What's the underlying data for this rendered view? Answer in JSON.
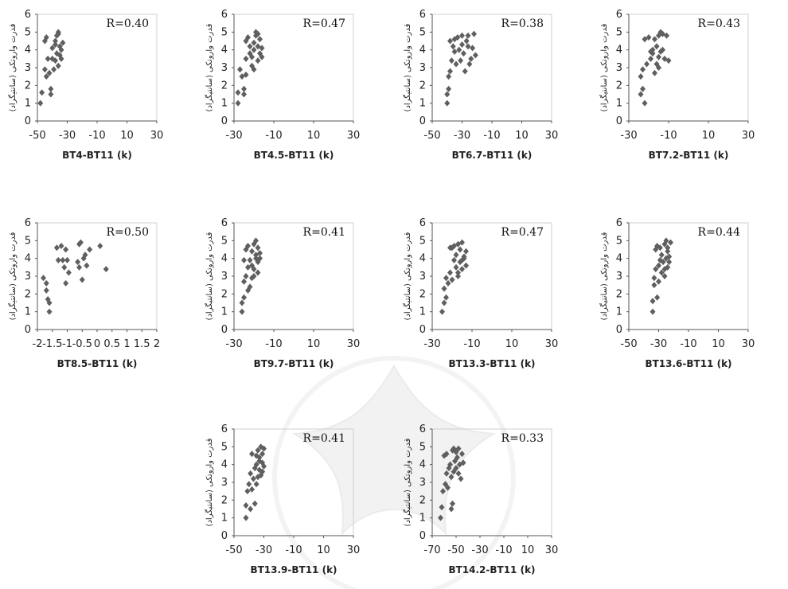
{
  "chart_data": [
    {
      "type": "scatter",
      "title": "",
      "xlabel": "BT4-BT11 (k)",
      "ylabel": "قدرت واروتکی (سانتیگراد)",
      "annotation": "R=0.40",
      "xlim": [
        -50,
        30
      ],
      "ylim": [
        0,
        6
      ],
      "xticks": [
        "-50",
        "-30",
        "-10",
        "10",
        "30"
      ],
      "yticks": [
        "0",
        "1",
        "2",
        "3",
        "4",
        "5",
        "6"
      ],
      "grid": false,
      "points": [
        [
          -48,
          1.0
        ],
        [
          -47,
          1.6
        ],
        [
          -45,
          2.9
        ],
        [
          -44,
          2.5
        ],
        [
          -43,
          3.5
        ],
        [
          -45,
          4.5
        ],
        [
          -44,
          4.7
        ],
        [
          -42,
          2.7
        ],
        [
          -40,
          3.5
        ],
        [
          -40,
          4.1
        ],
        [
          -41,
          1.5
        ],
        [
          -41,
          1.8
        ],
        [
          -39,
          2.9
        ],
        [
          -38,
          3.4
        ],
        [
          -37,
          3.8
        ],
        [
          -36,
          3.1
        ],
        [
          -38,
          4.5
        ],
        [
          -37,
          4.8
        ],
        [
          -36,
          5.0
        ],
        [
          -35,
          4.2
        ],
        [
          -34,
          4.0
        ],
        [
          -35,
          3.7
        ],
        [
          -34,
          3.5
        ],
        [
          -33,
          4.4
        ],
        [
          -38,
          4.3
        ],
        [
          -36,
          4.9
        ]
      ]
    },
    {
      "type": "scatter",
      "title": "",
      "xlabel": "BT4.5-BT11 (k)",
      "ylabel": "قدرت واروتکی (سانتیگراد)",
      "annotation": "R=0.47",
      "xlim": [
        -30,
        30
      ],
      "ylim": [
        0,
        6
      ],
      "xticks": [
        "-30",
        "-10",
        "10",
        "30"
      ],
      "yticks": [
        "0",
        "1",
        "2",
        "3",
        "4",
        "5",
        "6"
      ],
      "grid": false,
      "points": [
        [
          -28,
          1.0
        ],
        [
          -28,
          1.6
        ],
        [
          -27,
          2.9
        ],
        [
          -26,
          2.5
        ],
        [
          -25,
          1.5
        ],
        [
          -25,
          1.8
        ],
        [
          -24,
          2.6
        ],
        [
          -24,
          3.5
        ],
        [
          -24,
          4.5
        ],
        [
          -23,
          4.7
        ],
        [
          -22,
          3.8
        ],
        [
          -21,
          3.1
        ],
        [
          -21,
          3.6
        ],
        [
          -20,
          4.0
        ],
        [
          -20,
          4.4
        ],
        [
          -19,
          4.8
        ],
        [
          -19,
          5.0
        ],
        [
          -18,
          4.2
        ],
        [
          -18,
          3.4
        ],
        [
          -17,
          3.8
        ],
        [
          -17,
          4.6
        ],
        [
          -16,
          3.6
        ],
        [
          -16,
          4.1
        ],
        [
          -20,
          2.9
        ],
        [
          -22,
          4.2
        ],
        [
          -18,
          4.9
        ]
      ]
    },
    {
      "type": "scatter",
      "title": "",
      "xlabel": "BT6.7-BT11 (k)",
      "ylabel": "قدرت واروتکی (سانتیگراد)",
      "annotation": "R=0.38",
      "xlim": [
        -50,
        30
      ],
      "ylim": [
        0,
        6
      ],
      "xticks": [
        "-50",
        "-30",
        "-10",
        "10",
        "30"
      ],
      "yticks": [
        "0",
        "1",
        "2",
        "3",
        "4",
        "5",
        "6"
      ],
      "grid": false,
      "points": [
        [
          -40,
          1.0
        ],
        [
          -40,
          1.5
        ],
        [
          -39,
          1.8
        ],
        [
          -39,
          2.5
        ],
        [
          -38,
          2.8
        ],
        [
          -37,
          3.4
        ],
        [
          -38,
          4.5
        ],
        [
          -36,
          4.2
        ],
        [
          -35,
          3.9
        ],
        [
          -35,
          4.6
        ],
        [
          -34,
          3.2
        ],
        [
          -33,
          4.7
        ],
        [
          -32,
          4.0
        ],
        [
          -31,
          3.4
        ],
        [
          -30,
          4.3
        ],
        [
          -29,
          3.8
        ],
        [
          -28,
          2.8
        ],
        [
          -27,
          4.5
        ],
        [
          -26,
          4.8
        ],
        [
          -25,
          3.2
        ],
        [
          -24,
          3.5
        ],
        [
          -23,
          4.1
        ],
        [
          -22,
          4.9
        ],
        [
          -21,
          3.7
        ],
        [
          -30,
          4.8
        ],
        [
          -26,
          4.2
        ]
      ]
    },
    {
      "type": "scatter",
      "title": "",
      "xlabel": "BT7.2-BT11 (k)",
      "ylabel": "قدرت واروتکی (سانتیگراد)",
      "annotation": "R=0.43",
      "xlim": [
        -30,
        30
      ],
      "ylim": [
        0,
        6
      ],
      "xticks": [
        "-30",
        "-10",
        "10",
        "30"
      ],
      "yticks": [
        "0",
        "1",
        "2",
        "3",
        "4",
        "5",
        "6"
      ],
      "grid": false,
      "points": [
        [
          -24,
          1.5
        ],
        [
          -24,
          2.5
        ],
        [
          -23,
          1.8
        ],
        [
          -23,
          2.9
        ],
        [
          -22,
          1.0
        ],
        [
          -22,
          4.6
        ],
        [
          -21,
          3.2
        ],
        [
          -20,
          4.7
        ],
        [
          -19,
          3.5
        ],
        [
          -18,
          4.0
        ],
        [
          -18,
          3.8
        ],
        [
          -17,
          2.7
        ],
        [
          -17,
          4.6
        ],
        [
          -16,
          3.2
        ],
        [
          -16,
          4.2
        ],
        [
          -15,
          3.6
        ],
        [
          -15,
          4.8
        ],
        [
          -14,
          5.0
        ],
        [
          -14,
          3.9
        ],
        [
          -13,
          4.0
        ],
        [
          -13,
          4.9
        ],
        [
          -12,
          3.5
        ],
        [
          -11,
          4.8
        ],
        [
          -10,
          3.4
        ],
        [
          -19,
          3.9
        ],
        [
          -15,
          3.0
        ]
      ]
    },
    {
      "type": "scatter",
      "title": "",
      "xlabel": "BT8.5-BT11 (k)",
      "ylabel": "قدرت واروتکی (سانتیگراد)",
      "annotation": "R=0.50",
      "xlim": [
        -2,
        2
      ],
      "ylim": [
        0,
        6
      ],
      "xticks": [
        "-2",
        "-1.5",
        "-1",
        "-0.5",
        "0",
        "0.5",
        "1",
        "1.5",
        "2"
      ],
      "yticks": [
        "0",
        "1",
        "2",
        "3",
        "4",
        "5",
        "6"
      ],
      "grid": false,
      "points": [
        [
          -1.8,
          2.9
        ],
        [
          -1.7,
          2.6
        ],
        [
          -1.7,
          2.2
        ],
        [
          -1.65,
          1.7
        ],
        [
          -1.6,
          1.5
        ],
        [
          -1.6,
          1.0
        ],
        [
          -1.35,
          4.6
        ],
        [
          -1.3,
          3.9
        ],
        [
          -1.2,
          4.7
        ],
        [
          -1.15,
          3.9
        ],
        [
          -1.1,
          3.5
        ],
        [
          -1.05,
          4.5
        ],
        [
          -1.05,
          2.6
        ],
        [
          -1.0,
          3.9
        ],
        [
          -0.95,
          3.2
        ],
        [
          -0.65,
          3.8
        ],
        [
          -0.6,
          4.8
        ],
        [
          -0.6,
          3.5
        ],
        [
          -0.55,
          4.9
        ],
        [
          -0.5,
          2.8
        ],
        [
          -0.45,
          4.0
        ],
        [
          -0.4,
          4.2
        ],
        [
          -0.35,
          3.6
        ],
        [
          -0.25,
          4.5
        ],
        [
          0.1,
          4.7
        ],
        [
          0.3,
          3.4
        ]
      ]
    },
    {
      "type": "scatter",
      "title": "",
      "xlabel": "BT9.7-BT11 (k)",
      "ylabel": "قدرت واروتکی (سانتیگراد)",
      "annotation": "R=0.41",
      "xlim": [
        -30,
        30
      ],
      "ylim": [
        0,
        6
      ],
      "xticks": [
        "-30",
        "-10",
        "10",
        "30"
      ],
      "yticks": [
        "0",
        "1",
        "2",
        "3",
        "4",
        "5",
        "6"
      ],
      "grid": false,
      "points": [
        [
          -26,
          1.0
        ],
        [
          -26,
          1.5
        ],
        [
          -25,
          1.8
        ],
        [
          -25,
          2.7
        ],
        [
          -25,
          3.9
        ],
        [
          -24,
          3.0
        ],
        [
          -24,
          4.5
        ],
        [
          -23,
          3.5
        ],
        [
          -23,
          4.7
        ],
        [
          -22,
          2.4
        ],
        [
          -22,
          3.9
        ],
        [
          -21,
          3.6
        ],
        [
          -21,
          4.4
        ],
        [
          -21,
          2.9
        ],
        [
          -20,
          4.8
        ],
        [
          -20,
          3.4
        ],
        [
          -19,
          4.2
        ],
        [
          -19,
          5.0
        ],
        [
          -18,
          3.8
        ],
        [
          -18,
          3.2
        ],
        [
          -18,
          4.6
        ],
        [
          -17,
          4.0
        ],
        [
          -17,
          4.3
        ],
        [
          -23,
          2.2
        ],
        [
          -20,
          3.0
        ],
        [
          -19,
          4.0
        ]
      ]
    },
    {
      "type": "scatter",
      "title": "",
      "xlabel": "BT13.3-BT11 (k)",
      "ylabel": "قدرت واروتکی (سانتیگراد)",
      "annotation": "R=0.47",
      "xlim": [
        -30,
        30
      ],
      "ylim": [
        0,
        6
      ],
      "xticks": [
        "-30",
        "-10",
        "10",
        "30"
      ],
      "yticks": [
        "0",
        "1",
        "2",
        "3",
        "4",
        "5",
        "6"
      ],
      "grid": false,
      "points": [
        [
          -25,
          1.0
        ],
        [
          -24,
          1.5
        ],
        [
          -24,
          2.3
        ],
        [
          -23,
          1.8
        ],
        [
          -23,
          2.9
        ],
        [
          -22,
          2.6
        ],
        [
          -21,
          3.2
        ],
        [
          -21,
          4.6
        ],
        [
          -20,
          2.8
        ],
        [
          -19,
          3.9
        ],
        [
          -19,
          4.7
        ],
        [
          -18,
          3.5
        ],
        [
          -18,
          4.2
        ],
        [
          -17,
          3.0
        ],
        [
          -17,
          4.8
        ],
        [
          -16,
          3.8
        ],
        [
          -16,
          4.5
        ],
        [
          -15,
          3.4
        ],
        [
          -15,
          4.9
        ],
        [
          -14,
          4.0
        ],
        [
          -14,
          4.1
        ],
        [
          -13,
          3.6
        ],
        [
          -13,
          4.4
        ],
        [
          -17,
          3.2
        ],
        [
          -20,
          4.6
        ],
        [
          -15,
          3.9
        ]
      ]
    },
    {
      "type": "scatter",
      "title": "",
      "xlabel": "BT13.6-BT11 (k)",
      "ylabel": "قدرت واروتکی (سانتیگراد)",
      "annotation": "R=0.44",
      "xlim": [
        -50,
        30
      ],
      "ylim": [
        0,
        6
      ],
      "xticks": [
        "-50",
        "-30",
        "-10",
        "10",
        "30"
      ],
      "yticks": [
        "0",
        "1",
        "2",
        "3",
        "4",
        "5",
        "6"
      ],
      "grid": false,
      "points": [
        [
          -34,
          1.0
        ],
        [
          -34,
          1.6
        ],
        [
          -33,
          2.5
        ],
        [
          -33,
          2.9
        ],
        [
          -32,
          4.5
        ],
        [
          -32,
          3.4
        ],
        [
          -31,
          1.8
        ],
        [
          -31,
          4.7
        ],
        [
          -30,
          3.6
        ],
        [
          -30,
          2.7
        ],
        [
          -29,
          3.9
        ],
        [
          -29,
          4.6
        ],
        [
          -28,
          3.2
        ],
        [
          -28,
          4.2
        ],
        [
          -27,
          3.8
        ],
        [
          -26,
          4.8
        ],
        [
          -26,
          3.4
        ],
        [
          -25,
          4.0
        ],
        [
          -25,
          5.0
        ],
        [
          -24,
          3.5
        ],
        [
          -24,
          4.4
        ],
        [
          -23,
          4.1
        ],
        [
          -23,
          3.8
        ],
        [
          -22,
          4.9
        ],
        [
          -26,
          3.0
        ],
        [
          -24,
          4.6
        ]
      ]
    },
    {
      "type": "scatter",
      "title": "",
      "xlabel": "BT13.9-BT11 (k)",
      "ylabel": "قدرت واروتکی (سانتیگراد)",
      "annotation": "R=0.41",
      "xlim": [
        -50,
        30
      ],
      "ylim": [
        0,
        6
      ],
      "xticks": [
        "-50",
        "-30",
        "-10",
        "10",
        "30"
      ],
      "yticks": [
        "0",
        "1",
        "2",
        "3",
        "4",
        "5",
        "6"
      ],
      "grid": false,
      "points": [
        [
          -42,
          1.0
        ],
        [
          -42,
          1.7
        ],
        [
          -41,
          2.5
        ],
        [
          -40,
          2.9
        ],
        [
          -39,
          1.5
        ],
        [
          -39,
          3.5
        ],
        [
          -38,
          4.6
        ],
        [
          -38,
          2.6
        ],
        [
          -37,
          3.2
        ],
        [
          -36,
          3.8
        ],
        [
          -36,
          1.8
        ],
        [
          -35,
          4.0
        ],
        [
          -35,
          4.5
        ],
        [
          -34,
          3.3
        ],
        [
          -34,
          4.8
        ],
        [
          -33,
          3.7
        ],
        [
          -33,
          4.2
        ],
        [
          -32,
          5.0
        ],
        [
          -32,
          3.4
        ],
        [
          -31,
          4.1
        ],
        [
          -31,
          4.6
        ],
        [
          -30,
          3.9
        ],
        [
          -30,
          4.9
        ],
        [
          -35,
          2.9
        ],
        [
          -33,
          4.4
        ],
        [
          -31,
          3.6
        ]
      ]
    },
    {
      "type": "scatter",
      "title": "",
      "xlabel": "BT14.2-BT11 (k)",
      "ylabel": "قدرت واروتکی (سانتیگراد)",
      "annotation": "R=0.33",
      "xlim": [
        -70,
        30
      ],
      "ylim": [
        0,
        6
      ],
      "xticks": [
        "-70",
        "-50",
        "-30",
        "-10",
        "10",
        "30"
      ],
      "yticks": [
        "0",
        "1",
        "2",
        "3",
        "4",
        "5",
        "6"
      ],
      "grid": false,
      "points": [
        [
          -63,
          1.0
        ],
        [
          -62,
          1.6
        ],
        [
          -61,
          2.5
        ],
        [
          -60,
          4.5
        ],
        [
          -59,
          2.9
        ],
        [
          -58,
          3.5
        ],
        [
          -58,
          4.6
        ],
        [
          -57,
          2.7
        ],
        [
          -56,
          3.8
        ],
        [
          -55,
          4.0
        ],
        [
          -54,
          1.5
        ],
        [
          -54,
          3.3
        ],
        [
          -53,
          4.8
        ],
        [
          -53,
          1.8
        ],
        [
          -52,
          3.6
        ],
        [
          -52,
          4.9
        ],
        [
          -51,
          4.2
        ],
        [
          -50,
          3.8
        ],
        [
          -49,
          4.4
        ],
        [
          -48,
          3.5
        ],
        [
          -47,
          4.0
        ],
        [
          -46,
          3.2
        ],
        [
          -45,
          4.6
        ],
        [
          -44,
          4.1
        ],
        [
          -50,
          4.7
        ],
        [
          -48,
          4.9
        ]
      ]
    }
  ]
}
